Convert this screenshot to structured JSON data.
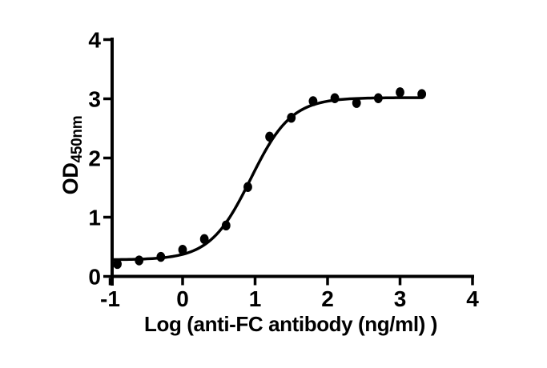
{
  "figure": {
    "background": "#ffffff"
  },
  "chart_data": {
    "type": "scatter",
    "title": "",
    "xlabel": "Log (anti-FC antibody (ng/ml) )",
    "ylabel": "OD",
    "ylabel_subscript": "450nm",
    "xlim": [
      -1,
      4
    ],
    "ylim": [
      0,
      4
    ],
    "x_ticks": [
      -1,
      0,
      1,
      2,
      3,
      4
    ],
    "y_ticks": [
      0,
      1,
      2,
      3,
      4
    ],
    "grid": false,
    "legend_position": "none",
    "marker": "filled-black-circle",
    "points": {
      "x": [
        -0.9,
        -0.6,
        -0.3,
        0.0,
        0.3,
        0.6,
        0.9,
        1.2,
        1.5,
        1.8,
        2.1,
        2.4,
        2.7,
        3.0,
        3.3
      ],
      "y": [
        0.21,
        0.27,
        0.33,
        0.45,
        0.63,
        0.86,
        1.51,
        2.36,
        2.68,
        2.96,
        3.01,
        2.93,
        3.01,
        3.11,
        3.08
      ]
    },
    "fit_curve": {
      "model": "4PL-sigmoidal-dose-response",
      "bottom": 0.28,
      "top": 3.02,
      "log_ec50": 0.94,
      "hill_slope": 1.55,
      "x_start": -0.95,
      "x_end": 3.3
    },
    "colors": {
      "points": "#000000",
      "curve": "#000000",
      "axis": "#000000",
      "text": "#000000"
    }
  }
}
